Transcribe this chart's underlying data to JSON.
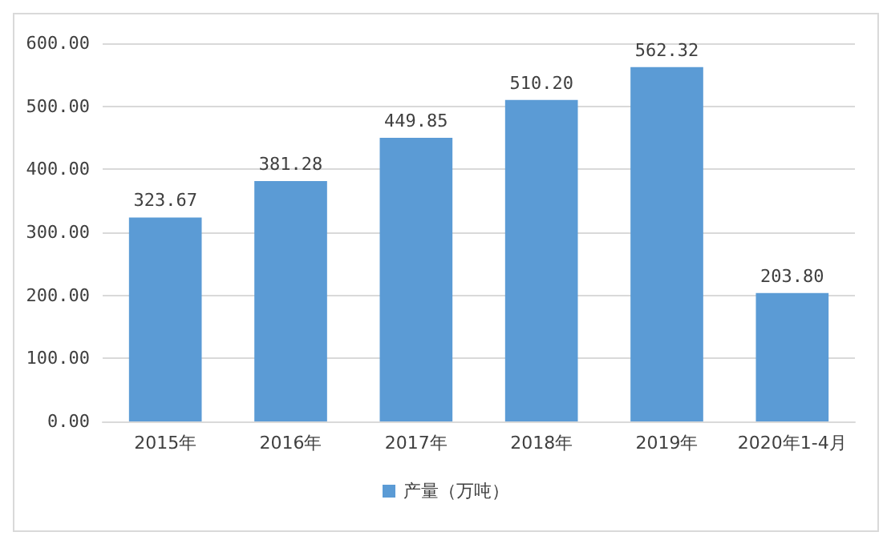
{
  "chart_data": {
    "type": "bar",
    "categories": [
      "2015年",
      "2016年",
      "2017年",
      "2018年",
      "2019年",
      "2020年1-4月"
    ],
    "series": [
      {
        "name": "产量（万吨）",
        "color": "#5b9bd5",
        "values": [
          323.67,
          381.28,
          449.85,
          510.2,
          562.32,
          203.8
        ],
        "value_labels": [
          "323.67",
          "381.28",
          "449.85",
          "510.20",
          "562.32",
          "203.80"
        ]
      }
    ],
    "ylim": [
      0,
      600
    ],
    "yticks": [
      {
        "value": 0,
        "label": "0.00"
      },
      {
        "value": 100,
        "label": "100.00"
      },
      {
        "value": 200,
        "label": "200.00"
      },
      {
        "value": 300,
        "label": "300.00"
      },
      {
        "value": 400,
        "label": "400.00"
      },
      {
        "value": 500,
        "label": "500.00"
      },
      {
        "value": 600,
        "label": "600.00"
      }
    ],
    "grid": "y",
    "legend": "bottom"
  }
}
